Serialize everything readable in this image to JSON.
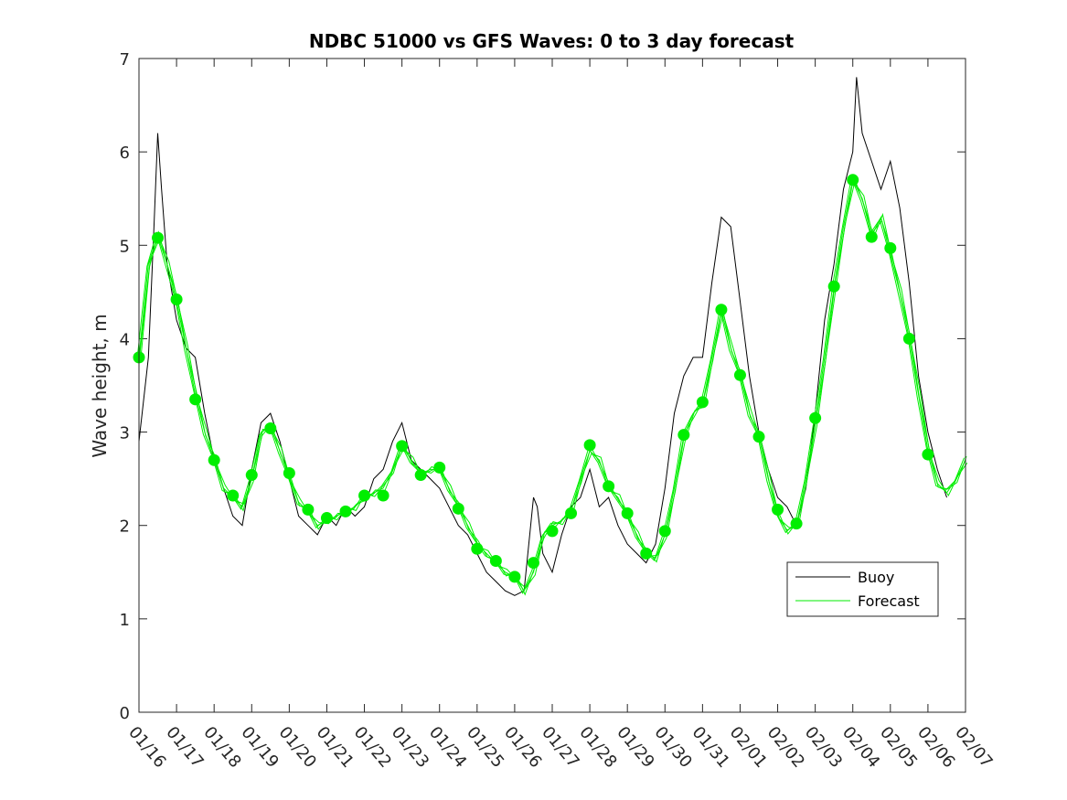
{
  "chart_data": {
    "type": "line",
    "title": "NDBC 51000 vs GFS Waves: 0 to 3 day forecast",
    "xlabel": "",
    "ylabel": "Wave height, m",
    "ylim": [
      0,
      7
    ],
    "yticks": [
      "0",
      "1",
      "2",
      "3",
      "4",
      "5",
      "6",
      "7"
    ],
    "xlim_days": [
      0,
      22
    ],
    "xtick_labels": [
      "01/16",
      "01/17",
      "01/18",
      "01/19",
      "01/20",
      "01/21",
      "01/22",
      "01/23",
      "01/24",
      "01/25",
      "01/26",
      "01/27",
      "01/28",
      "01/29",
      "01/30",
      "01/31",
      "02/01",
      "02/02",
      "02/03",
      "02/04",
      "02/05",
      "02/06",
      "02/07"
    ],
    "legend": {
      "placement": "lower-right",
      "entries": [
        "Buoy",
        "Forecast"
      ]
    },
    "colors": {
      "buoy": "#000000",
      "forecast": "#00ee00",
      "axes": "#262626"
    },
    "series": [
      {
        "name": "Buoy",
        "x": [
          0,
          0.25,
          0.4,
          0.5,
          0.6,
          0.75,
          1,
          1.25,
          1.5,
          1.75,
          2,
          2.25,
          2.5,
          2.75,
          3,
          3.25,
          3.5,
          3.75,
          4,
          4.25,
          4.5,
          4.75,
          5,
          5.25,
          5.5,
          5.75,
          6,
          6.25,
          6.5,
          6.75,
          7,
          7.25,
          7.5,
          7.75,
          8,
          8.25,
          8.5,
          8.75,
          9,
          9.25,
          9.5,
          9.75,
          10,
          10.25,
          10.5,
          10.6,
          10.75,
          11,
          11.25,
          11.5,
          11.75,
          12,
          12.25,
          12.5,
          12.75,
          13,
          13.25,
          13.5,
          13.75,
          14,
          14.25,
          14.5,
          14.75,
          15,
          15.25,
          15.5,
          15.75,
          16,
          16.25,
          16.5,
          16.75,
          17,
          17.25,
          17.5,
          17.75,
          18,
          18.25,
          18.5,
          18.75,
          19,
          19.1,
          19.25,
          19.5,
          19.75,
          20,
          20.25,
          20.5,
          20.75,
          21,
          21.25,
          21.5
        ],
        "values": [
          2.9,
          3.8,
          5.2,
          6.2,
          5.6,
          4.8,
          4.2,
          3.9,
          3.8,
          3.2,
          2.7,
          2.4,
          2.1,
          2.0,
          2.6,
          3.1,
          3.2,
          2.9,
          2.5,
          2.1,
          2.0,
          1.9,
          2.1,
          2.0,
          2.2,
          2.1,
          2.2,
          2.5,
          2.6,
          2.9,
          3.1,
          2.7,
          2.6,
          2.5,
          2.4,
          2.2,
          2.0,
          1.9,
          1.7,
          1.5,
          1.4,
          1.3,
          1.25,
          1.3,
          2.3,
          2.2,
          1.7,
          1.5,
          1.9,
          2.2,
          2.3,
          2.6,
          2.2,
          2.3,
          2.0,
          1.8,
          1.7,
          1.6,
          1.8,
          2.4,
          3.2,
          3.6,
          3.8,
          3.8,
          4.6,
          5.3,
          5.2,
          4.4,
          3.6,
          3.0,
          2.6,
          2.3,
          2.2,
          2.0,
          2.4,
          3.2,
          4.2,
          4.8,
          5.6,
          6.0,
          6.8,
          6.2,
          5.9,
          5.6,
          5.9,
          5.4,
          4.6,
          3.6,
          3.0,
          2.6,
          2.3
        ]
      },
      {
        "name": "Forecast",
        "x": [
          0,
          0.25,
          0.5,
          0.75,
          1,
          1.25,
          1.5,
          1.75,
          2,
          2.25,
          2.5,
          2.75,
          3,
          3.25,
          3.5,
          3.75,
          4,
          4.25,
          4.5,
          4.75,
          5,
          5.25,
          5.5,
          5.75,
          6,
          6.25,
          6.5,
          6.75,
          7,
          7.25,
          7.5,
          7.75,
          8,
          8.25,
          8.5,
          8.75,
          9,
          9.25,
          9.5,
          9.75,
          10,
          10.25,
          10.5,
          10.75,
          11,
          11.25,
          11.5,
          11.75,
          12,
          12.25,
          12.5,
          12.75,
          13,
          13.25,
          13.5,
          13.75,
          14,
          14.25,
          14.5,
          14.75,
          15,
          15.25,
          15.5,
          15.75,
          16,
          16.25,
          16.5,
          16.75,
          17,
          17.25,
          17.5,
          17.75,
          18,
          18.25,
          18.5,
          18.75,
          19,
          19.25,
          19.5,
          19.75,
          20,
          20.25,
          20.5,
          20.75,
          21,
          21.25,
          21.5,
          21.75,
          22
        ],
        "values": [
          3.8,
          4.8,
          5.1,
          4.8,
          4.4,
          3.9,
          3.4,
          3.0,
          2.7,
          2.4,
          2.3,
          2.2,
          2.5,
          3.0,
          3.05,
          2.8,
          2.5,
          2.25,
          2.15,
          2.0,
          2.05,
          2.1,
          2.15,
          2.2,
          2.3,
          2.35,
          2.4,
          2.6,
          2.85,
          2.7,
          2.55,
          2.6,
          2.6,
          2.4,
          2.2,
          2.0,
          1.8,
          1.7,
          1.6,
          1.5,
          1.45,
          1.3,
          1.5,
          1.9,
          2.0,
          2.05,
          2.15,
          2.5,
          2.8,
          2.7,
          2.4,
          2.3,
          2.1,
          1.9,
          1.7,
          1.65,
          1.9,
          2.4,
          2.95,
          3.2,
          3.3,
          3.8,
          4.3,
          3.9,
          3.6,
          3.2,
          2.95,
          2.5,
          2.1,
          1.95,
          2.0,
          2.5,
          3.1,
          3.8,
          4.55,
          5.2,
          5.7,
          5.5,
          5.1,
          5.3,
          4.9,
          4.5,
          4.0,
          3.4,
          2.8,
          2.45,
          2.35,
          2.5,
          2.7
        ]
      }
    ],
    "markers": {
      "name": "Forecast analysis points",
      "x": [
        0,
        0.5,
        1,
        1.5,
        2,
        2.5,
        3,
        3.5,
        4,
        4.5,
        5,
        5.5,
        6,
        6.5,
        7,
        7.5,
        8,
        8.5,
        9,
        9.5,
        10,
        10.5,
        11,
        11.5,
        12,
        12.5,
        13,
        13.5,
        14,
        14.5,
        15,
        15.5,
        16,
        16.5,
        17,
        17.5,
        18,
        18.5,
        19,
        19.5,
        20,
        20.5,
        21
      ],
      "values": [
        3.8,
        5.08,
        4.42,
        3.35,
        2.7,
        2.32,
        2.54,
        3.04,
        2.56,
        2.17,
        2.08,
        2.15,
        2.32,
        2.32,
        2.85,
        2.54,
        2.62,
        2.18,
        1.75,
        1.62,
        1.45,
        1.6,
        1.94,
        2.13,
        2.86,
        2.42,
        2.13,
        1.7,
        1.94,
        2.97,
        3.32,
        4.31,
        3.61,
        2.95,
        2.17,
        2.02,
        3.15,
        4.56,
        5.7,
        5.09,
        4.97,
        4.0,
        2.76
      ]
    }
  }
}
